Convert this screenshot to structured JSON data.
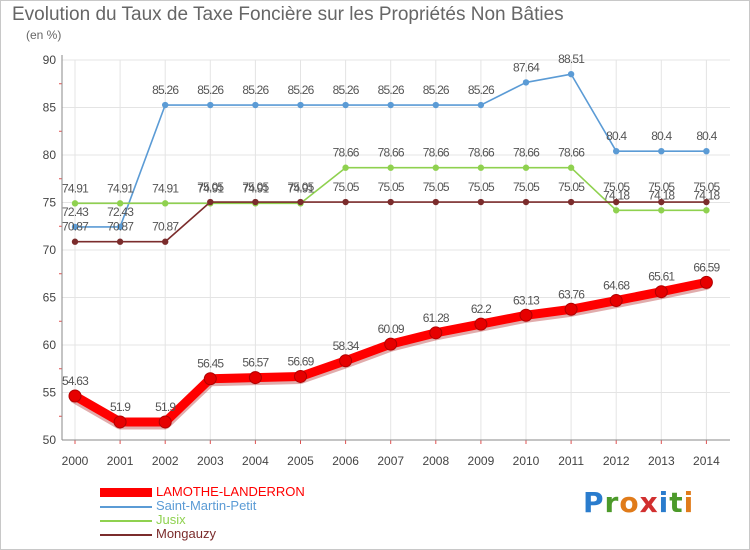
{
  "title": "Evolution du Taux de Taxe Foncière sur les Propriétés Non Bâties",
  "unit_label": "(en %)",
  "brand": {
    "text": "Proxiti",
    "letters": [
      "P",
      "r",
      "o",
      "x",
      "i",
      "t",
      "i"
    ],
    "letter_colors": [
      "#2a7ccd",
      "#4c9a2a",
      "#e07b1a",
      "#d12f2f",
      "#2a7ccd",
      "#4c9a2a",
      "#e07b1a"
    ]
  },
  "chart_data": {
    "type": "line",
    "title": "Evolution du Taux de Taxe Foncière sur les Propriétés Non Bâties",
    "ylabel": "(en %)",
    "xlabel": "",
    "x": [
      "2000",
      "2001",
      "2002",
      "2003",
      "2004",
      "2005",
      "2006",
      "2007",
      "2008",
      "2009",
      "2010",
      "2011",
      "2012",
      "2013",
      "2014"
    ],
    "ylim": [
      50,
      90
    ],
    "yticks": [
      50,
      55,
      60,
      65,
      70,
      75,
      80,
      85,
      90
    ],
    "grid": true,
    "series": [
      {
        "name": "LAMOTHE-LANDERRON",
        "color": "#ff0000",
        "thick": true,
        "values": [
          54.63,
          51.9,
          51.9,
          56.45,
          56.57,
          56.69,
          58.34,
          60.09,
          61.28,
          62.2,
          63.13,
          63.76,
          64.68,
          65.61,
          66.59
        ],
        "labels": [
          "54.63",
          "51.9",
          "51.9",
          "56.45",
          "56.57",
          "56.69",
          "58.34",
          "60.09",
          "61.28",
          "62.2",
          "63.13",
          "63.76",
          "64.68",
          "65.61",
          "66.59"
        ]
      },
      {
        "name": "Saint-Martin-Petit",
        "color": "#5b9bd5",
        "thick": false,
        "values": [
          72.43,
          72.43,
          85.26,
          85.26,
          85.26,
          85.26,
          85.26,
          85.26,
          85.26,
          85.26,
          87.64,
          88.51,
          80.4,
          80.4,
          80.4
        ],
        "labels": [
          "72.43",
          "72.43",
          "85.26",
          "85.26",
          "85.26",
          "85.26",
          "85.26",
          "85.26",
          "85.26",
          "85.26",
          "87.64",
          "88.51",
          "80.4",
          "80.4",
          "80.4"
        ]
      },
      {
        "name": "Jusix",
        "color": "#8fd14f",
        "thick": false,
        "values": [
          74.91,
          74.91,
          74.91,
          74.91,
          74.91,
          74.91,
          78.66,
          78.66,
          78.66,
          78.66,
          78.66,
          78.66,
          74.18,
          74.18,
          74.18
        ],
        "labels": [
          "74.91",
          "74.91",
          "74.91",
          "74.91",
          "74.91",
          "74.91",
          "78.66",
          "78.66",
          "78.66",
          "78.66",
          "78.66",
          "78.66",
          "74.18",
          "74.18",
          "74.18"
        ]
      },
      {
        "name": "Mongauzy",
        "color": "#7b2c2c",
        "thick": false,
        "values": [
          70.87,
          70.87,
          70.87,
          75.05,
          75.05,
          75.05,
          75.05,
          75.05,
          75.05,
          75.05,
          75.05,
          75.05,
          75.05,
          75.05,
          75.05
        ],
        "labels": [
          "70.87",
          "70.87",
          "70.87",
          "75.05",
          "75.05",
          "75.05",
          "75.05",
          "75.05",
          "75.05",
          "75.05",
          "75.05",
          "75.05",
          "75.05",
          "75.05",
          "75.05"
        ]
      }
    ],
    "legend": [
      "LAMOTHE-LANDERRON",
      "Saint-Martin-Petit",
      "Jusix",
      "Mongauzy"
    ]
  }
}
